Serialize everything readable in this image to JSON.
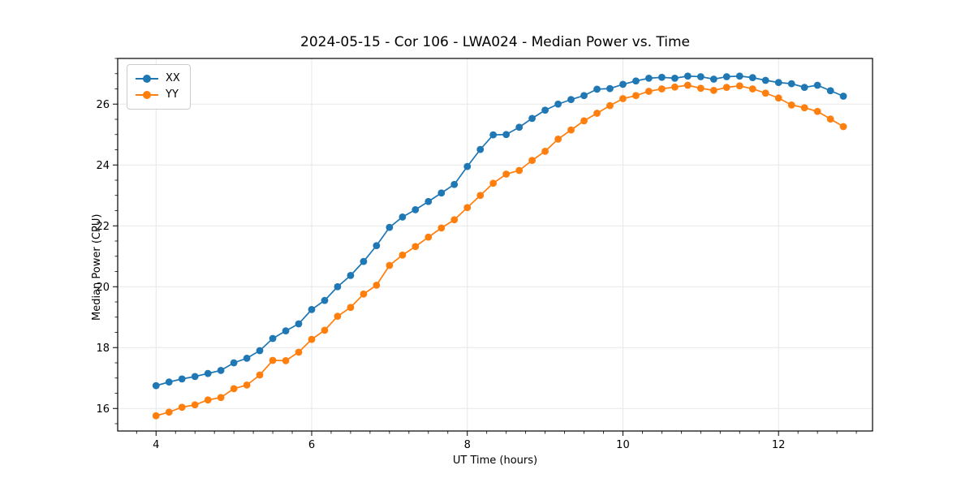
{
  "chart_data": {
    "type": "line",
    "title": "2024-05-15 - Cor 106 - LWA024 - Median Power vs. Time",
    "xlabel": "UT Time (hours)",
    "ylabel": "Median Power (CPU)",
    "xlim": [
      3.507,
      13.208
    ],
    "ylim": [
      15.26,
      27.5
    ],
    "x_ticks": [
      4,
      6,
      8,
      10,
      12
    ],
    "y_ticks": [
      16,
      18,
      20,
      22,
      24,
      26
    ],
    "x_minor_step": 0.25,
    "y_minor_step": 0.5,
    "grid": "major-only",
    "grid_color": "#e7e7e7",
    "legend_position": "upper-left",
    "x": [
      4.0,
      4.167,
      4.333,
      4.5,
      4.667,
      4.833,
      5.0,
      5.167,
      5.333,
      5.5,
      5.667,
      5.833,
      6.0,
      6.167,
      6.333,
      6.5,
      6.667,
      6.833,
      7.0,
      7.167,
      7.333,
      7.5,
      7.667,
      7.833,
      8.0,
      8.167,
      8.333,
      8.5,
      8.667,
      8.833,
      9.0,
      9.167,
      9.333,
      9.5,
      9.667,
      9.833,
      10.0,
      10.167,
      10.333,
      10.5,
      10.667,
      10.833,
      11.0,
      11.167,
      11.333,
      11.5,
      11.667,
      11.833,
      12.0,
      12.167,
      12.333,
      12.5,
      12.667,
      12.833
    ],
    "series": [
      {
        "name": "XX",
        "color": "#1f77b4",
        "values": [
          16.75,
          16.87,
          16.97,
          17.05,
          17.15,
          17.25,
          17.5,
          17.65,
          17.9,
          18.3,
          18.55,
          18.78,
          19.25,
          19.55,
          20.0,
          20.37,
          20.83,
          21.35,
          21.95,
          22.29,
          22.53,
          22.8,
          23.08,
          23.36,
          23.95,
          24.51,
          24.99,
          25.0,
          25.24,
          25.53,
          25.8,
          26.0,
          26.15,
          26.28,
          26.49,
          26.51,
          26.65,
          26.76,
          26.85,
          26.88,
          26.85,
          26.92,
          26.9,
          26.82,
          26.9,
          26.92,
          26.87,
          26.78,
          26.71,
          26.67,
          26.55,
          26.62,
          26.44,
          26.26
        ]
      },
      {
        "name": "YY",
        "color": "#ff7f0e",
        "values": [
          15.76,
          15.88,
          16.04,
          16.12,
          16.28,
          16.36,
          16.65,
          16.77,
          17.1,
          17.58,
          17.57,
          17.85,
          18.27,
          18.57,
          19.03,
          19.32,
          19.76,
          20.05,
          20.7,
          21.04,
          21.32,
          21.63,
          21.93,
          22.2,
          22.6,
          23.0,
          23.4,
          23.7,
          23.82,
          24.15,
          24.45,
          24.85,
          25.15,
          25.45,
          25.7,
          25.95,
          26.18,
          26.28,
          26.42,
          26.5,
          26.56,
          26.62,
          26.52,
          26.45,
          26.55,
          26.6,
          26.5,
          26.36,
          26.2,
          25.97,
          25.88,
          25.76,
          25.51,
          25.26
        ]
      }
    ]
  }
}
